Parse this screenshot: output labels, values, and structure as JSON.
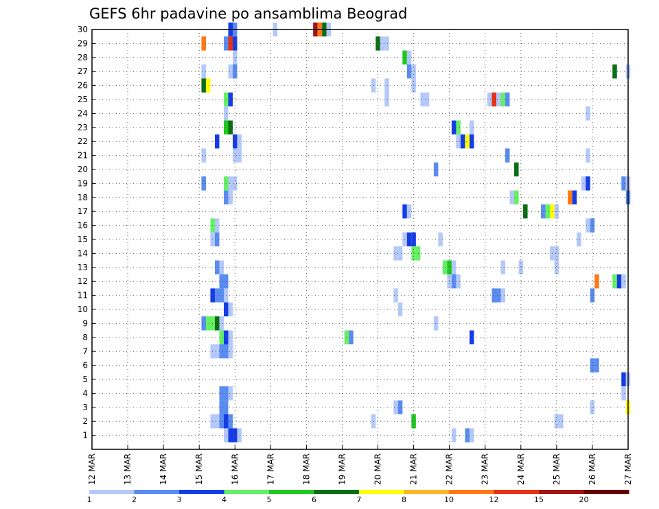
{
  "chart_data": {
    "type": "heatmap",
    "title": "GEFS 6hr padavine po ansamblima Beograd",
    "xlabel": "",
    "ylabel": "",
    "x_ticks": [
      "12 MAR",
      "13 MAR",
      "14 MAR",
      "15 MAR",
      "16 MAR",
      "17 MAR",
      "18 MAR",
      "19 MAR",
      "20 MAR",
      "21 MAR",
      "22 MAR",
      "23 MAR",
      "24 MAR",
      "25 MAR",
      "26 MAR",
      "27 MAR"
    ],
    "xlim": [
      0,
      60
    ],
    "x_unit": "6-hour steps from 12 MAR 00Z",
    "y_ticks": [
      1,
      2,
      3,
      4,
      5,
      6,
      7,
      8,
      9,
      10,
      11,
      12,
      13,
      14,
      15,
      16,
      17,
      18,
      19,
      20,
      21,
      22,
      23,
      24,
      25,
      26,
      27,
      28,
      29,
      30
    ],
    "ylim": [
      0,
      30
    ],
    "grid": true,
    "legend": {
      "placement": "bottom",
      "levels": [
        "1",
        "2",
        "3",
        "4",
        "5",
        "6",
        "7",
        "8",
        "10",
        "12",
        "15",
        "20"
      ],
      "colors": [
        "#b4c8fa",
        "#5a8cf0",
        "#143ce6",
        "#64f064",
        "#1ec81e",
        "#0a6e14",
        "#ffff00",
        "#ffb428",
        "#ff7814",
        "#e63214",
        "#a01414",
        "#640000"
      ]
    },
    "cells": [
      {
        "x": 15.5,
        "y": 30,
        "v": 3
      },
      {
        "x": 16,
        "y": 30,
        "v": 2
      },
      {
        "x": 20.5,
        "y": 30,
        "v": 1
      },
      {
        "x": 25,
        "y": 30,
        "v": 11
      },
      {
        "x": 25.5,
        "y": 30,
        "v": 9
      },
      {
        "x": 26,
        "y": 30,
        "v": 6
      },
      {
        "x": 26.5,
        "y": 30,
        "v": 1
      },
      {
        "x": 12.5,
        "y": 29,
        "v": 9
      },
      {
        "x": 15,
        "y": 29,
        "v": 2
      },
      {
        "x": 15.5,
        "y": 29,
        "v": 10
      },
      {
        "x": 16,
        "y": 29,
        "v": 3
      },
      {
        "x": 32,
        "y": 29,
        "v": 6
      },
      {
        "x": 32.5,
        "y": 29,
        "v": 1
      },
      {
        "x": 33,
        "y": 29,
        "v": 1
      },
      {
        "x": 16,
        "y": 28,
        "v": 1
      },
      {
        "x": 35,
        "y": 28,
        "v": 5
      },
      {
        "x": 35.5,
        "y": 28,
        "v": 1
      },
      {
        "x": 12.5,
        "y": 27,
        "v": 1
      },
      {
        "x": 15.5,
        "y": 27,
        "v": 1
      },
      {
        "x": 16,
        "y": 27,
        "v": 2
      },
      {
        "x": 35.5,
        "y": 27,
        "v": 2
      },
      {
        "x": 36,
        "y": 27,
        "v": 1
      },
      {
        "x": 58.5,
        "y": 27,
        "v": 6
      },
      {
        "x": 60,
        "y": 27,
        "v": 1
      },
      {
        "x": 12.5,
        "y": 26,
        "v": 6
      },
      {
        "x": 13,
        "y": 26,
        "v": 7
      },
      {
        "x": 31.5,
        "y": 26,
        "v": 1
      },
      {
        "x": 33,
        "y": 26,
        "v": 1
      },
      {
        "x": 36,
        "y": 26,
        "v": 1
      },
      {
        "x": 15,
        "y": 25,
        "v": 4
      },
      {
        "x": 15.5,
        "y": 25,
        "v": 3
      },
      {
        "x": 33,
        "y": 25,
        "v": 1
      },
      {
        "x": 37,
        "y": 25,
        "v": 1
      },
      {
        "x": 37.5,
        "y": 25,
        "v": 1
      },
      {
        "x": 44.5,
        "y": 25,
        "v": 1
      },
      {
        "x": 45,
        "y": 25,
        "v": 10
      },
      {
        "x": 45.5,
        "y": 25,
        "v": 1
      },
      {
        "x": 46,
        "y": 25,
        "v": 4
      },
      {
        "x": 46.5,
        "y": 25,
        "v": 2
      },
      {
        "x": 15,
        "y": 24,
        "v": 1
      },
      {
        "x": 55.5,
        "y": 24,
        "v": 1
      },
      {
        "x": 15,
        "y": 23,
        "v": 5
      },
      {
        "x": 15.5,
        "y": 23,
        "v": 6
      },
      {
        "x": 40.5,
        "y": 23,
        "v": 3
      },
      {
        "x": 41,
        "y": 23,
        "v": 4
      },
      {
        "x": 42.5,
        "y": 23,
        "v": 1
      },
      {
        "x": 14,
        "y": 22,
        "v": 3
      },
      {
        "x": 16,
        "y": 22,
        "v": 3
      },
      {
        "x": 16.5,
        "y": 22,
        "v": 1
      },
      {
        "x": 41,
        "y": 22,
        "v": 1
      },
      {
        "x": 41.5,
        "y": 22,
        "v": 3
      },
      {
        "x": 42,
        "y": 22,
        "v": 7
      },
      {
        "x": 42.5,
        "y": 22,
        "v": 3
      },
      {
        "x": 12.5,
        "y": 21,
        "v": 1
      },
      {
        "x": 16,
        "y": 21,
        "v": 1
      },
      {
        "x": 16.5,
        "y": 21,
        "v": 1
      },
      {
        "x": 46.5,
        "y": 21,
        "v": 2
      },
      {
        "x": 55.5,
        "y": 21,
        "v": 1
      },
      {
        "x": 38.5,
        "y": 20,
        "v": 2
      },
      {
        "x": 47.5,
        "y": 20,
        "v": 6
      },
      {
        "x": 12.5,
        "y": 19,
        "v": 2
      },
      {
        "x": 15,
        "y": 19,
        "v": 4
      },
      {
        "x": 15.5,
        "y": 19,
        "v": 1
      },
      {
        "x": 16,
        "y": 19,
        "v": 1
      },
      {
        "x": 55,
        "y": 19,
        "v": 1
      },
      {
        "x": 55.5,
        "y": 19,
        "v": 3
      },
      {
        "x": 59.5,
        "y": 19,
        "v": 2
      },
      {
        "x": 60,
        "y": 19,
        "v": 1
      },
      {
        "x": 15,
        "y": 18,
        "v": 2
      },
      {
        "x": 15.5,
        "y": 18,
        "v": 1
      },
      {
        "x": 47,
        "y": 18,
        "v": 1
      },
      {
        "x": 47.5,
        "y": 18,
        "v": 4
      },
      {
        "x": 53.5,
        "y": 18,
        "v": 9
      },
      {
        "x": 54,
        "y": 18,
        "v": 3
      },
      {
        "x": 60,
        "y": 18,
        "v": 2
      },
      {
        "x": 35,
        "y": 17,
        "v": 3
      },
      {
        "x": 35.5,
        "y": 17,
        "v": 1
      },
      {
        "x": 48.5,
        "y": 17,
        "v": 6
      },
      {
        "x": 50.5,
        "y": 17,
        "v": 2
      },
      {
        "x": 51,
        "y": 17,
        "v": 4
      },
      {
        "x": 51.5,
        "y": 17,
        "v": 7
      },
      {
        "x": 52,
        "y": 17,
        "v": 1
      },
      {
        "x": 13.5,
        "y": 16,
        "v": 4
      },
      {
        "x": 14,
        "y": 16,
        "v": 1
      },
      {
        "x": 55.5,
        "y": 16,
        "v": 1
      },
      {
        "x": 56,
        "y": 16,
        "v": 2
      },
      {
        "x": 13.5,
        "y": 15,
        "v": 1
      },
      {
        "x": 14,
        "y": 15,
        "v": 2
      },
      {
        "x": 35,
        "y": 15,
        "v": 1
      },
      {
        "x": 35.5,
        "y": 15,
        "v": 3
      },
      {
        "x": 36,
        "y": 15,
        "v": 3
      },
      {
        "x": 39,
        "y": 15,
        "v": 1
      },
      {
        "x": 54.5,
        "y": 15,
        "v": 1
      },
      {
        "x": 34,
        "y": 14,
        "v": 1
      },
      {
        "x": 34.5,
        "y": 14,
        "v": 1
      },
      {
        "x": 36,
        "y": 14,
        "v": 4
      },
      {
        "x": 36.5,
        "y": 14,
        "v": 4
      },
      {
        "x": 51.5,
        "y": 14,
        "v": 1
      },
      {
        "x": 52,
        "y": 14,
        "v": 1
      },
      {
        "x": 14,
        "y": 13,
        "v": 2
      },
      {
        "x": 14.5,
        "y": 13,
        "v": 1
      },
      {
        "x": 39.5,
        "y": 13,
        "v": 4
      },
      {
        "x": 40,
        "y": 13,
        "v": 5
      },
      {
        "x": 40.5,
        "y": 13,
        "v": 1
      },
      {
        "x": 46,
        "y": 13,
        "v": 1
      },
      {
        "x": 48,
        "y": 13,
        "v": 1
      },
      {
        "x": 52,
        "y": 13,
        "v": 1
      },
      {
        "x": 14.5,
        "y": 12,
        "v": 2
      },
      {
        "x": 15,
        "y": 12,
        "v": 2
      },
      {
        "x": 40,
        "y": 12,
        "v": 1
      },
      {
        "x": 40.5,
        "y": 12,
        "v": 2
      },
      {
        "x": 41,
        "y": 12,
        "v": 1
      },
      {
        "x": 56.5,
        "y": 12,
        "v": 9
      },
      {
        "x": 58.5,
        "y": 12,
        "v": 4
      },
      {
        "x": 59,
        "y": 12,
        "v": 3
      },
      {
        "x": 59.5,
        "y": 12,
        "v": 1
      },
      {
        "x": 13.5,
        "y": 11,
        "v": 3
      },
      {
        "x": 14,
        "y": 11,
        "v": 2
      },
      {
        "x": 14.5,
        "y": 11,
        "v": 2
      },
      {
        "x": 15,
        "y": 11,
        "v": 1
      },
      {
        "x": 34,
        "y": 11,
        "v": 1
      },
      {
        "x": 45,
        "y": 11,
        "v": 2
      },
      {
        "x": 45.5,
        "y": 11,
        "v": 2
      },
      {
        "x": 46,
        "y": 11,
        "v": 1
      },
      {
        "x": 56,
        "y": 11,
        "v": 2
      },
      {
        "x": 15,
        "y": 10,
        "v": 3
      },
      {
        "x": 15.5,
        "y": 10,
        "v": 1
      },
      {
        "x": 34.5,
        "y": 10,
        "v": 1
      },
      {
        "x": 12.5,
        "y": 9,
        "v": 2
      },
      {
        "x": 13,
        "y": 9,
        "v": 4
      },
      {
        "x": 13.5,
        "y": 9,
        "v": 4
      },
      {
        "x": 14,
        "y": 9,
        "v": 6
      },
      {
        "x": 14.5,
        "y": 9,
        "v": 1
      },
      {
        "x": 38.5,
        "y": 9,
        "v": 1
      },
      {
        "x": 14.5,
        "y": 8,
        "v": 4
      },
      {
        "x": 15,
        "y": 8,
        "v": 3
      },
      {
        "x": 15.5,
        "y": 8,
        "v": 1
      },
      {
        "x": 28.5,
        "y": 8,
        "v": 4
      },
      {
        "x": 29,
        "y": 8,
        "v": 2
      },
      {
        "x": 42.5,
        "y": 8,
        "v": 3
      },
      {
        "x": 13.5,
        "y": 7,
        "v": 1
      },
      {
        "x": 14,
        "y": 7,
        "v": 1
      },
      {
        "x": 14.5,
        "y": 7,
        "v": 2
      },
      {
        "x": 15,
        "y": 7,
        "v": 2
      },
      {
        "x": 15.5,
        "y": 7,
        "v": 1
      },
      {
        "x": 56,
        "y": 6,
        "v": 2
      },
      {
        "x": 56.5,
        "y": 6,
        "v": 2
      },
      {
        "x": 59.5,
        "y": 5,
        "v": 3
      },
      {
        "x": 60,
        "y": 5,
        "v": 1
      },
      {
        "x": 14.5,
        "y": 4,
        "v": 2
      },
      {
        "x": 15,
        "y": 4,
        "v": 2
      },
      {
        "x": 15.5,
        "y": 4,
        "v": 1
      },
      {
        "x": 59.5,
        "y": 4,
        "v": 1
      },
      {
        "x": 14.5,
        "y": 3,
        "v": 2
      },
      {
        "x": 15,
        "y": 3,
        "v": 2
      },
      {
        "x": 34,
        "y": 3,
        "v": 1
      },
      {
        "x": 34.5,
        "y": 3,
        "v": 2
      },
      {
        "x": 56,
        "y": 3,
        "v": 1
      },
      {
        "x": 60,
        "y": 3,
        "v": 7
      },
      {
        "x": 13.5,
        "y": 2,
        "v": 1
      },
      {
        "x": 14,
        "y": 2,
        "v": 1
      },
      {
        "x": 14.5,
        "y": 2,
        "v": 2
      },
      {
        "x": 15,
        "y": 2,
        "v": 3
      },
      {
        "x": 15.5,
        "y": 2,
        "v": 2
      },
      {
        "x": 31.5,
        "y": 2,
        "v": 1
      },
      {
        "x": 36,
        "y": 2,
        "v": 5
      },
      {
        "x": 52,
        "y": 2,
        "v": 1
      },
      {
        "x": 52.5,
        "y": 2,
        "v": 1
      },
      {
        "x": 15,
        "y": 1,
        "v": 1
      },
      {
        "x": 15.5,
        "y": 1,
        "v": 3
      },
      {
        "x": 16,
        "y": 1,
        "v": 3
      },
      {
        "x": 16.5,
        "y": 1,
        "v": 1
      },
      {
        "x": 40.5,
        "y": 1,
        "v": 1
      },
      {
        "x": 42,
        "y": 1,
        "v": 2
      },
      {
        "x": 42.5,
        "y": 1,
        "v": 1
      }
    ]
  }
}
